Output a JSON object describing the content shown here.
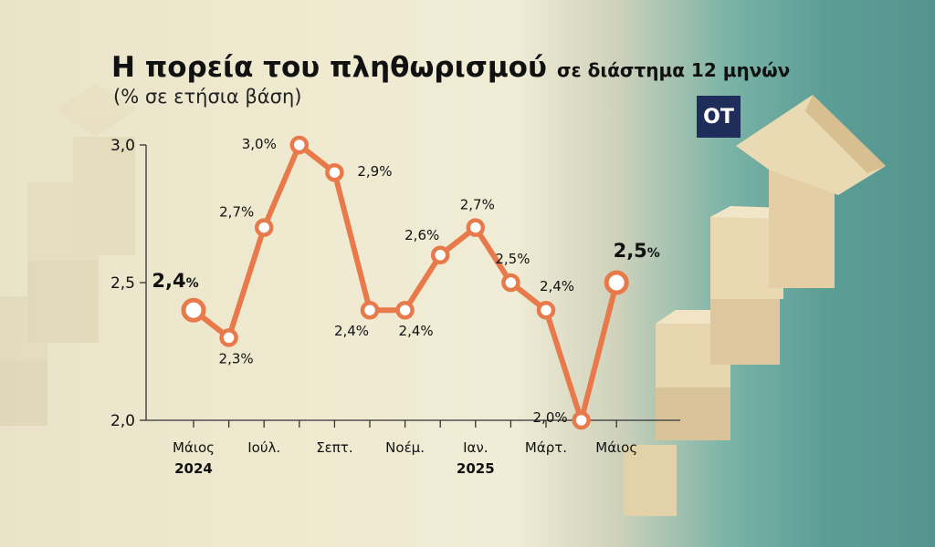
{
  "title": "Η πορεία του πληθωρισμού",
  "title_suffix": "σε διάστημα 12 μηνών",
  "subtitle": "(% σε ετήσια βάση)",
  "logo": "OT",
  "colors": {
    "line": "#e8794a",
    "axis": "#333333",
    "text": "#111111",
    "logo_bg": "#1f2d5a"
  },
  "chart_data": {
    "type": "line",
    "title": "Η πορεία του πληθωρισμού σε διάστημα 12 μηνών",
    "ylabel": "(% σε ετήσια βάση)",
    "ylim": [
      2.0,
      3.0
    ],
    "y_ticks": [
      "2,0",
      "2,5",
      "3,0"
    ],
    "x_tick_labels": [
      "Μάιος",
      "Ιούλ.",
      "Σεπτ.",
      "Νοέμ.",
      "Ιαν.",
      "Μάρτ.",
      "Μάιος"
    ],
    "x_year_labels": [
      "2024",
      "2025"
    ],
    "months": [
      "2024-05",
      "2024-06",
      "2024-07",
      "2024-08",
      "2024-09",
      "2024-10",
      "2024-11",
      "2024-12",
      "2025-01",
      "2025-02",
      "2025-03",
      "2025-04",
      "2025-05"
    ],
    "values": [
      2.4,
      2.3,
      2.7,
      3.0,
      2.9,
      2.4,
      2.4,
      2.6,
      2.7,
      2.5,
      2.4,
      2.0,
      2.5
    ],
    "labels": [
      "2,4%",
      "2,3%",
      "2,7%",
      "3,0%",
      "2,9%",
      "2,4%",
      "2,4%",
      "2,6%",
      "2,7%",
      "2,5%",
      "2,4%",
      "2,0%",
      "2,5%"
    ],
    "grid": false
  }
}
